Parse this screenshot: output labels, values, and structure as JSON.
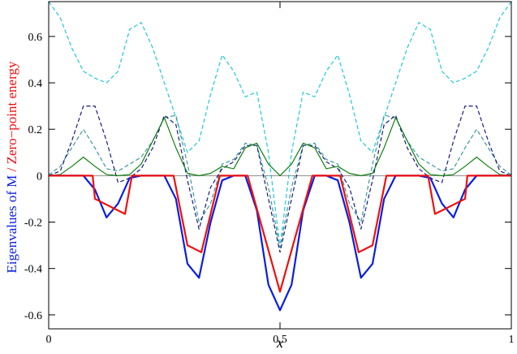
{
  "chart_data": {
    "type": "line",
    "xlabel": "x",
    "ylabel": [
      "Eigenvalues of M",
      "/ Zero−point energy"
    ],
    "xlim": [
      0,
      1
    ],
    "ylim": [
      -0.66,
      0.75
    ],
    "xticks": [
      0,
      0.5,
      1
    ],
    "yticks": [
      -0.6,
      -0.4,
      -0.2,
      0,
      0.2,
      0.4,
      0.6
    ],
    "x": [
      0,
      0.025,
      0.05,
      0.075,
      0.1,
      0.125,
      0.15,
      0.175,
      0.2,
      0.225,
      0.25,
      0.275,
      0.3,
      0.325,
      0.35,
      0.375,
      0.4,
      0.425,
      0.45,
      0.475,
      0.5,
      0.525,
      0.55,
      0.575,
      0.6,
      0.625,
      0.65,
      0.675,
      0.7,
      0.725,
      0.75,
      0.775,
      0.8,
      0.825,
      0.85,
      0.875,
      0.9,
      0.925,
      0.95,
      0.975,
      1
    ],
    "series": [
      {
        "color": "#20c8d8",
        "dashed": true,
        "width": 1.2,
        "values": [
          0.75,
          0.68,
          0.55,
          0.45,
          0.42,
          0.4,
          0.45,
          0.63,
          0.66,
          0.55,
          0.4,
          0.25,
          0.1,
          0.15,
          0.35,
          0.52,
          0.45,
          0.34,
          0.36,
          0.1,
          -0.31,
          0.1,
          0.36,
          0.34,
          0.45,
          0.52,
          0.35,
          0.15,
          0.1,
          0.25,
          0.4,
          0.55,
          0.66,
          0.63,
          0.45,
          0.4,
          0.42,
          0.45,
          0.55,
          0.68,
          0.75
        ]
      },
      {
        "color": "#3a9a9a",
        "dashed": true,
        "width": 1.2,
        "values": [
          0.003,
          0.04,
          0.12,
          0.2,
          0.12,
          0.03,
          0.02,
          0.05,
          0.08,
          0.15,
          0.25,
          0.26,
          0.05,
          -0.2,
          -0.12,
          0.05,
          0.07,
          0.14,
          0.13,
          -0.05,
          -0.31,
          -0.05,
          0.13,
          0.14,
          0.07,
          0.05,
          -0.12,
          -0.2,
          0.05,
          0.26,
          0.25,
          0.15,
          0.08,
          0.05,
          0.02,
          0.03,
          0.12,
          0.2,
          0.12,
          0.04,
          0.003
        ]
      },
      {
        "color": "#1a1a80",
        "dashed": true,
        "width": 1.2,
        "values": [
          0,
          0.02,
          0.15,
          0.3,
          0.3,
          0.15,
          -0.03,
          -0.01,
          0.03,
          0.12,
          0.26,
          0.22,
          -0.02,
          -0.23,
          -0.05,
          0.03,
          0.06,
          0.13,
          0.13,
          -0.1,
          -0.33,
          -0.1,
          0.13,
          0.13,
          0.06,
          0.03,
          -0.05,
          -0.23,
          -0.02,
          0.22,
          0.26,
          0.12,
          0.03,
          -0.01,
          -0.03,
          0.15,
          0.3,
          0.3,
          0.15,
          0.02,
          0
        ]
      },
      {
        "color": "#108010",
        "dashed": false,
        "width": 1.2,
        "values": [
          0,
          0.005,
          0.04,
          0.08,
          0.04,
          0.005,
          0,
          0.005,
          0.05,
          0.15,
          0.25,
          0.12,
          0.01,
          0,
          0.01,
          0.04,
          0.03,
          0.12,
          0.14,
          0.05,
          0,
          0.05,
          0.14,
          0.12,
          0.03,
          0.04,
          0.01,
          0,
          0.01,
          0.12,
          0.25,
          0.15,
          0.05,
          0.005,
          0,
          0.005,
          0.04,
          0.08,
          0.04,
          0.005,
          0
        ]
      },
      {
        "color": "#0a1ee0",
        "dashed": false,
        "width": 2.2,
        "values": [
          0,
          0,
          0,
          0,
          -0.06,
          -0.18,
          -0.12,
          -0.01,
          0,
          0,
          0,
          -0.1,
          -0.38,
          -0.44,
          -0.2,
          -0.02,
          0,
          0,
          -0.15,
          -0.47,
          -0.58,
          -0.47,
          -0.15,
          0,
          0,
          -0.02,
          -0.2,
          -0.44,
          -0.38,
          -0.1,
          0,
          0,
          0,
          -0.01,
          -0.12,
          -0.18,
          -0.06,
          0,
          0,
          0,
          0
        ]
      },
      {
        "color": "#ee1010",
        "dashed": false,
        "width": 2.2,
        "x": [
          0,
          0.095,
          0.1,
          0.165,
          0.18,
          0.27,
          0.3,
          0.33,
          0.37,
          0.43,
          0.5,
          0.57,
          0.63,
          0.67,
          0.7,
          0.73,
          0.82,
          0.835,
          0.9,
          0.905,
          1
        ],
        "values": [
          0,
          0,
          -0.1,
          -0.165,
          0,
          0,
          -0.3,
          -0.33,
          0,
          0,
          -0.5,
          0,
          0,
          -0.33,
          -0.3,
          0,
          0,
          -0.165,
          -0.1,
          0,
          0
        ]
      }
    ]
  }
}
